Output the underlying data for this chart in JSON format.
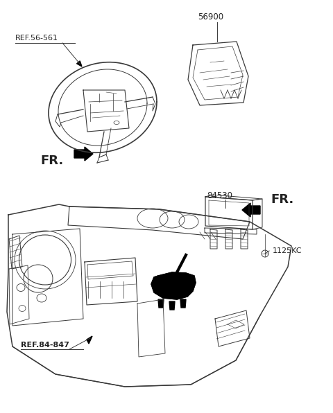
{
  "bg_color": "#ffffff",
  "lc": "#3a3a3a",
  "lc_light": "#666666",
  "black": "#000000",
  "label_color": "#222222",
  "labels": {
    "ref_56_561": "REF.56-561",
    "part_56900": "56900",
    "fr_top": "FR.",
    "ref_84_847": "REF.84-847",
    "part_84530": "84530",
    "fr_bottom": "FR.",
    "bolt_label": "1125KC"
  },
  "figsize": [
    4.8,
    5.96
  ],
  "dpi": 100
}
